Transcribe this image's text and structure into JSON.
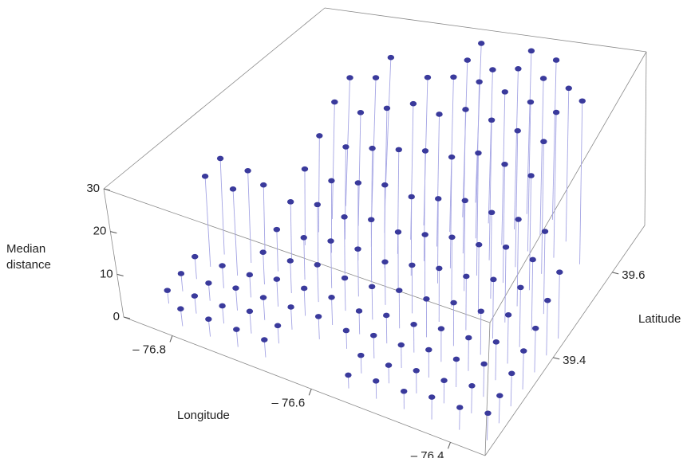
{
  "chart_data": {
    "type": "stem3d",
    "x_label": "Longitude",
    "y_label": "Latitude",
    "z_label": "Median distance",
    "x": [
      -76.84,
      -76.8,
      -76.76,
      -76.72,
      -76.68,
      -76.64,
      -76.6,
      -76.56,
      -76.52,
      -76.48,
      -76.44,
      -76.4,
      -76.36
    ],
    "y": [
      39.2,
      39.24,
      39.28,
      39.32,
      39.36,
      39.4,
      39.44,
      39.48,
      39.52,
      39.56,
      39.6,
      39.64,
      39.68
    ],
    "z": [
      [
        null,
        4,
        4,
        4,
        4,
        null,
        null,
        3,
        4,
        4,
        5,
        5,
        6
      ],
      [
        3,
        4,
        4,
        5,
        4,
        null,
        null,
        4,
        4,
        5,
        5,
        6,
        6
      ],
      [
        4,
        4,
        5,
        5,
        5,
        5,
        4,
        5,
        5,
        6,
        6,
        7,
        7
      ],
      [
        5,
        5,
        5,
        6,
        6,
        6,
        5,
        6,
        6,
        7,
        7,
        8,
        8
      ],
      [
        20,
        19,
        7,
        7,
        8,
        7,
        7,
        8,
        8,
        9,
        9,
        10,
        9
      ],
      [
        21,
        20,
        9,
        9,
        10,
        10,
        9,
        10,
        11,
        11,
        12,
        12,
        11
      ],
      [
        null,
        14,
        12,
        13,
        12,
        13,
        12,
        13,
        14,
        14,
        15,
        14,
        13
      ],
      [
        null,
        null,
        16,
        15,
        16,
        17,
        16,
        17,
        18,
        17,
        17,
        16,
        null
      ],
      [
        null,
        null,
        20,
        19,
        20,
        21,
        22,
        22,
        24,
        23,
        22,
        null,
        null
      ],
      [
        null,
        null,
        24,
        23,
        25,
        27,
        26,
        28,
        27,
        26,
        25,
        null,
        null
      ],
      [
        null,
        null,
        26,
        27,
        null,
        29,
        30,
        30,
        29,
        28,
        27,
        30,
        null
      ],
      [
        null,
        null,
        null,
        28,
        null,
        null,
        30,
        29,
        30,
        29,
        28,
        null,
        null
      ],
      [
        null,
        null,
        null,
        null,
        null,
        null,
        30,
        null,
        30,
        29,
        null,
        null,
        null
      ]
    ],
    "xlim": [
      -76.87,
      -76.35
    ],
    "ylim": [
      39.17,
      39.71
    ],
    "zlim": [
      0,
      30
    ],
    "xticks": [
      {
        "value": -76.8,
        "label": "– 76.8"
      },
      {
        "value": -76.6,
        "label": "– 76.6"
      },
      {
        "value": -76.4,
        "label": "– 76.4"
      }
    ],
    "yticks": [
      39.4,
      39.6
    ],
    "zticks": [
      0,
      10,
      20,
      30
    ],
    "color": "#3a3a9c",
    "stem_color": "#a4a4e4"
  }
}
